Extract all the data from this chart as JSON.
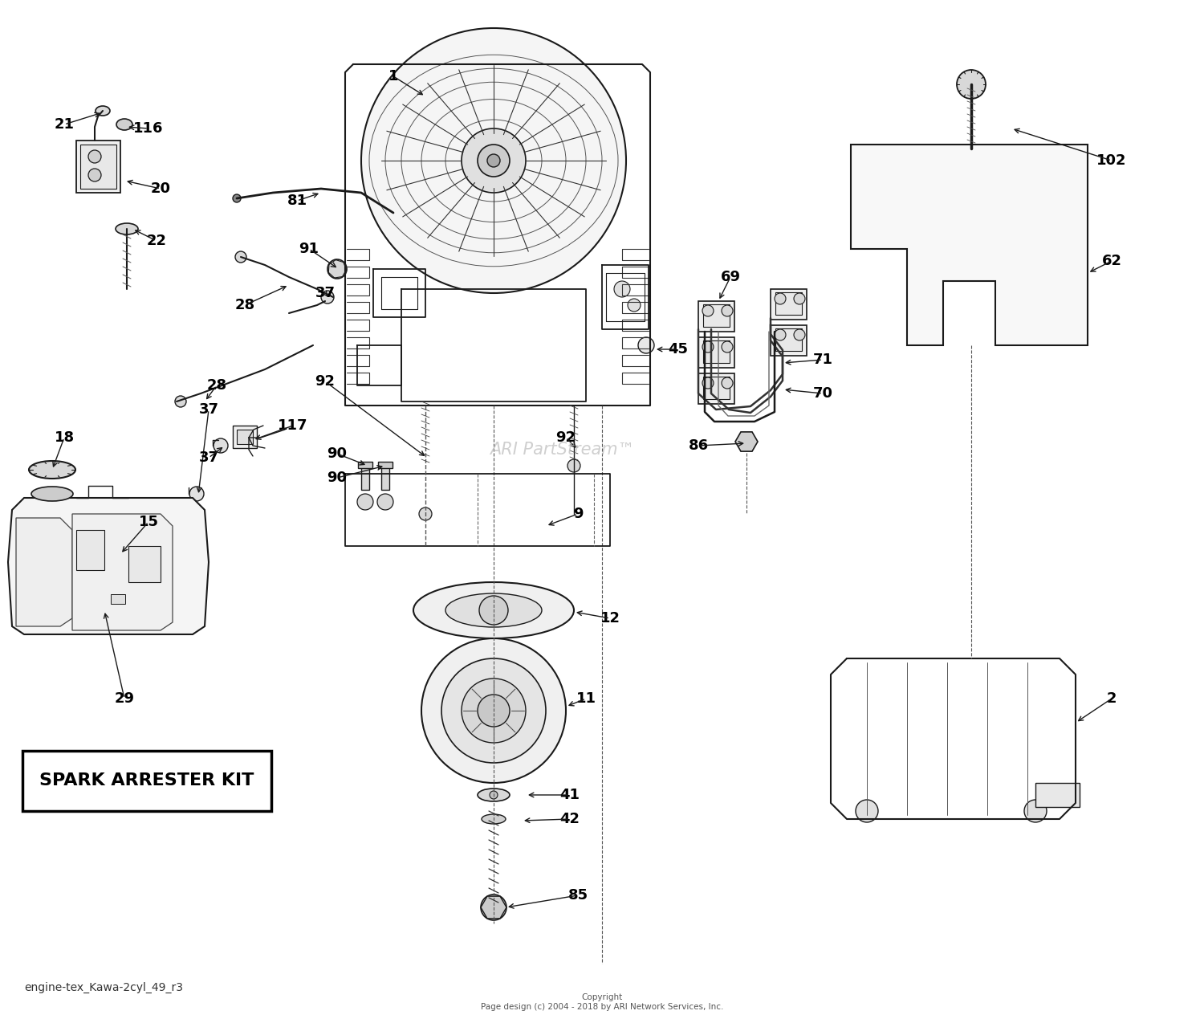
{
  "bg_color": "#ffffff",
  "watermark": "ARI PartStream™",
  "footer_left": "engine-tex_Kawa-2cyl_49_r3",
  "footer_center": "Copyright\nPage design (c) 2004 - 2018 by ARI Network Services, Inc.",
  "spark_arrester_text": "SPARK ARRESTER KIT"
}
